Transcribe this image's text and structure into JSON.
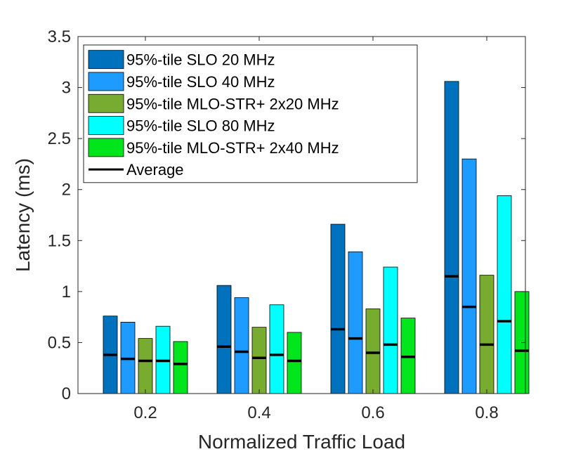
{
  "chart_data": {
    "type": "bar",
    "title": "",
    "xlabel": "Normalized Traffic Load",
    "ylabel": "Latency (ms)",
    "ylim": [
      0,
      3.5
    ],
    "yticks": [
      "0",
      "0.5",
      "1",
      "1.5",
      "2",
      "2.5",
      "3",
      "3.5"
    ],
    "categories": [
      "0.2",
      "0.4",
      "0.6",
      "0.8"
    ],
    "series": [
      {
        "name": "95%-tile SLO 20 MHz",
        "color": "#0072BD",
        "values": [
          0.76,
          1.06,
          1.66,
          3.06
        ],
        "average": [
          0.38,
          0.46,
          0.63,
          1.15
        ]
      },
      {
        "name": "95%-tile SLO 40 MHz",
        "color": "#1E9BFF",
        "values": [
          0.7,
          0.94,
          1.39,
          2.3
        ],
        "average": [
          0.34,
          0.41,
          0.54,
          0.85
        ]
      },
      {
        "name": "95%-tile MLO-STR+ 2x20 MHz",
        "color": "#77AC30",
        "values": [
          0.54,
          0.65,
          0.83,
          1.16
        ],
        "average": [
          0.32,
          0.35,
          0.4,
          0.48
        ]
      },
      {
        "name": "95%-tile SLO 80 MHz",
        "color": "#00FFFF",
        "values": [
          0.66,
          0.87,
          1.24,
          1.94
        ],
        "average": [
          0.32,
          0.38,
          0.48,
          0.71
        ]
      },
      {
        "name": "95%-tile MLO-STR+ 2x40 MHz",
        "color": "#00E51C",
        "values": [
          0.51,
          0.6,
          0.74,
          1.0
        ],
        "average": [
          0.29,
          0.32,
          0.36,
          0.42
        ]
      }
    ],
    "average_legend": "Average",
    "legend_position": "top-left",
    "grid": false
  }
}
